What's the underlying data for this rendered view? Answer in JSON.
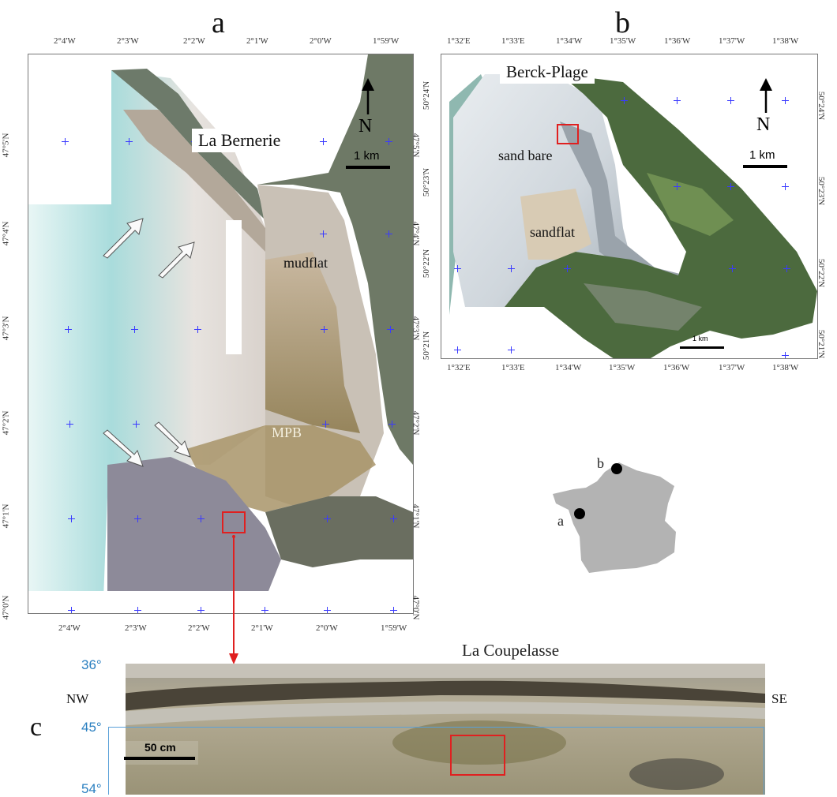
{
  "panel_a": {
    "letter": "a",
    "top_ticks": [
      "2°4'W",
      "2°3'W",
      "2°2'W",
      "2°1'W",
      "2°0'W",
      "1°59'W"
    ],
    "bottom_ticks": [
      "2°4'W",
      "2°3'W",
      "2°2'W",
      "2°1'W",
      "2°0'W",
      "1°59'W"
    ],
    "left_ticks": [
      "47°5'N",
      "47°4'N",
      "47°3'N",
      "47°2'N",
      "47°1'N",
      "47°0'N"
    ],
    "right_ticks": [
      "47°5'N",
      "47°4'N",
      "47°3'N",
      "47°2'N",
      "47°1'N",
      "47°0'N"
    ],
    "place_label": "La Bernerie",
    "feature_mudflat": "mudflat",
    "feature_mpb": "MPB",
    "north_label": "N",
    "scale_label": "1 km"
  },
  "panel_b": {
    "letter": "b",
    "top_ticks": [
      "1°32'E",
      "1°33'E",
      "1°34'W",
      "1°35'W",
      "1°36'W",
      "1°37'W",
      "1°38'W"
    ],
    "bottom_ticks": [
      "1°32'E",
      "1°33'E",
      "1°34'W",
      "1°35'W",
      "1°36'W",
      "1°37'W",
      "1°38'W"
    ],
    "left_ticks": [
      "50°24'N",
      "50°23'N",
      "50°22'N",
      "50°21'N"
    ],
    "right_ticks": [
      "50°24'N",
      "50°23'N",
      "50°22'N",
      "50°21'N"
    ],
    "place_label": "Berck-Plage",
    "feature_sandbare": "sand bare",
    "feature_sandflat": "sandflat",
    "north_label": "N",
    "scale_label": "1 km",
    "small_scale_label": "1 km"
  },
  "france_map": {
    "label_a": "a",
    "label_b": "b"
  },
  "panel_c": {
    "letter": "c",
    "title": "La Coupelasse",
    "left_side": "NW",
    "right_side": "SE",
    "angles": [
      "36°",
      "45°",
      "54°"
    ],
    "scale_label": "50 cm"
  },
  "colors": {
    "grid_cross": "#3a3aff",
    "highlight_box": "#e02020",
    "angle_text": "#2a7fc0",
    "angle_box": "#5aa0d8",
    "france_fill": "#b3b3b3"
  }
}
